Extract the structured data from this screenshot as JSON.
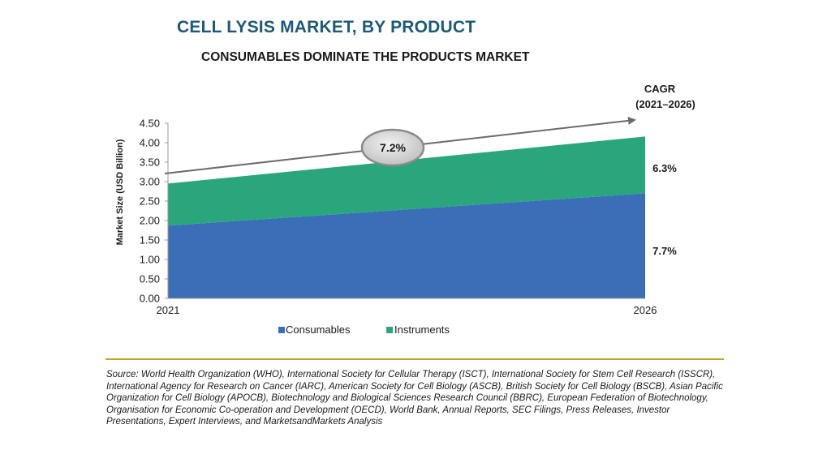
{
  "title": "CELL LYSIS MARKET, BY PRODUCT",
  "subtitle": "CONSUMABLES DOMINATE THE PRODUCTS MARKET",
  "chart_data": {
    "type": "area",
    "stacked": true,
    "x": [
      "2021",
      "2026"
    ],
    "series": [
      {
        "name": "Consumables",
        "values": [
          1.87,
          2.7
        ],
        "color": "#3a6fb7",
        "cagr": "7.7%"
      },
      {
        "name": "Instruments",
        "values": [
          1.08,
          1.46
        ],
        "color": "#2aa67c",
        "cagr": "6.3%"
      }
    ],
    "ylabel": "Market Size (USD Billion)",
    "ylim": [
      0,
      4.5
    ],
    "yticks": [
      "0.00",
      "0.50",
      "1.00",
      "1.50",
      "2.00",
      "2.50",
      "3.00",
      "3.50",
      "4.00",
      "4.50"
    ],
    "cagr_header": [
      "CAGR",
      "(2021–2026)"
    ],
    "overall_cagr": "7.2%",
    "legend_position": "bottom",
    "grid": false
  },
  "source": "Source: World Health Organization (WHO), International Society for Cellular Therapy (ISCT), International Society for Stem Cell Research (ISSCR), International Agency for Research on Cancer (IARC), American Society for Cell Biology (ASCB), British Society for Cell Biology (BSCB), Asian Pacific Organization for Cell Biology (APOCB), Biotechnology and Biological Sciences Research Council (BBRC), European Federation of Biotechnology, Organisation for Economic Co-operation and Development (OECD), World Bank, Annual Reports, SEC Filings, Press Releases, Investor Presentations, Expert Interviews, and MarketsandMarkets Analysis"
}
